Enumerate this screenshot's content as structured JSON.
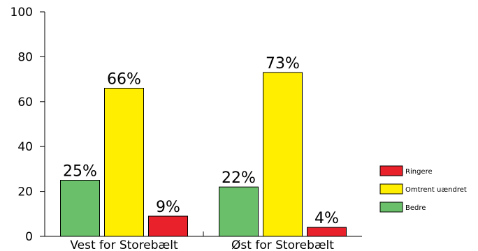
{
  "chart_data": {
    "type": "bar",
    "title": "",
    "xlabel": "",
    "ylabel": "",
    "ylim": [
      0,
      100
    ],
    "yticks": [
      0,
      20,
      40,
      60,
      80,
      100
    ],
    "grid": false,
    "legend_position": "right",
    "categories": [
      "Vest for Storebælt",
      "Øst for Storebælt"
    ],
    "series": [
      {
        "name": "Bedre",
        "color": "#6abf6a",
        "values": [
          25,
          22
        ],
        "labels": [
          "25%",
          "22%"
        ]
      },
      {
        "name": "Omtrent uændret",
        "color": "#ffee00",
        "values": [
          66,
          73
        ],
        "labels": [
          "66%",
          "73%"
        ]
      },
      {
        "name": "Ringere",
        "color": "#e8212a",
        "values": [
          9,
          4
        ],
        "labels": [
          "9%",
          "4%"
        ]
      }
    ],
    "legend_order": [
      "Ringere",
      "Omtrent uændret",
      "Bedre"
    ]
  }
}
